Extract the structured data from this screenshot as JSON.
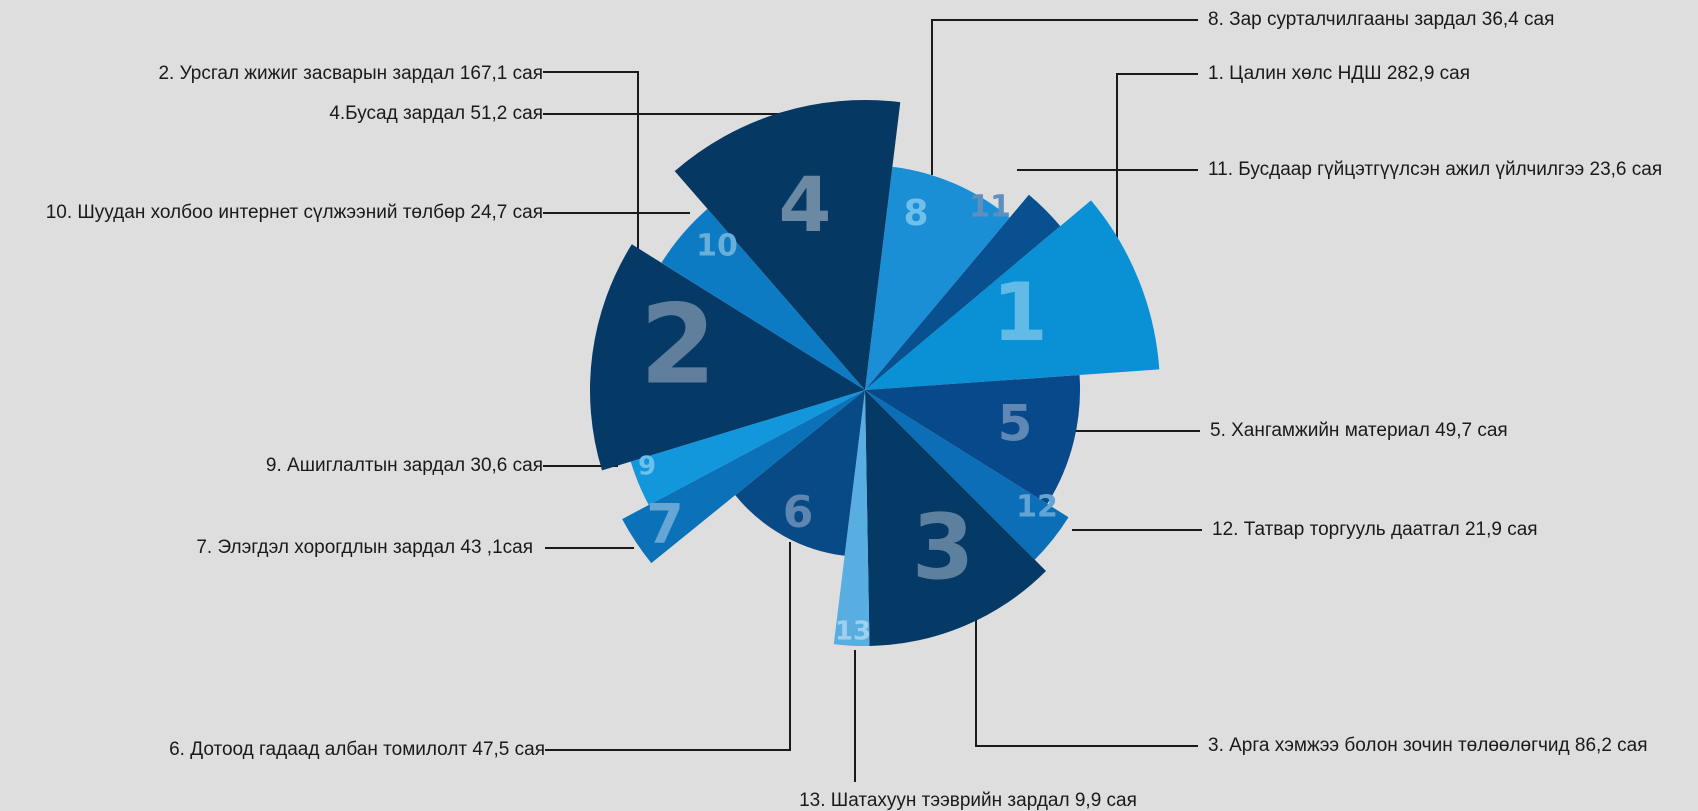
{
  "chart_data": {
    "type": "polar-area",
    "title": "",
    "unit": "сая",
    "series": [
      {
        "id": "8",
        "label": "8. Зар сурталчилгааны зардал 36,4 сая",
        "value": 36.4,
        "color": "#1a8fd6",
        "numColor": "#6fbfeb"
      },
      {
        "id": "11",
        "label": "11. Бусдаар гүйцэтгүүлсэн ажил үйлчилгээ 23,6 сая",
        "value": 23.6,
        "color": "#08508f",
        "numColor": "#5f8fbf"
      },
      {
        "id": "1",
        "label": "1. Цалин хөлс НДШ 282,9 сая",
        "value": 282.9,
        "color": "#0a90d4",
        "numColor": "#61bbe6"
      },
      {
        "id": "5",
        "label": "5. Хангамжийн материал 49,7 сая",
        "value": 49.7,
        "color": "#07498a",
        "numColor": "#5f88b4"
      },
      {
        "id": "12",
        "label": "12. Татвар торгууль даатгал 21,9 сая",
        "value": 21.9,
        "color": "#0b6eb6",
        "numColor": "#62a4d4"
      },
      {
        "id": "3",
        "label": "3. Арга хэмжээ болон зочин төлөөлөгчид 86,2 сая",
        "value": 86.2,
        "color": "#063a66",
        "numColor": "#5d809f"
      },
      {
        "id": "13",
        "label": "13. Шатахуун тээврийн зардал 9,9 сая",
        "value": 9.9,
        "color": "#58aee0",
        "numColor": "#9fd0ee"
      },
      {
        "id": "6",
        "label": "6. Дотоод гадаад албан томилолт 47,5 сая",
        "value": 47.5,
        "color": "#074a86",
        "numColor": "#5e86b0"
      },
      {
        "id": "7",
        "label": "7. Элэгдэл хорогдлын зардал 43 ,1сая",
        "value": 43.1,
        "color": "#0b72b9",
        "numColor": "#65a6d6"
      },
      {
        "id": "9",
        "label": "9. Ашиглалтын зардал 30,6 сая",
        "value": 30.6,
        "color": "#1297dc",
        "numColor": "#6cc0ec"
      },
      {
        "id": "2",
        "label": "2. Урсгал жижиг засварын зардал 167,1 сая",
        "value": 167.1,
        "color": "#063a66",
        "numColor": "#5f7f9c"
      },
      {
        "id": "10",
        "label": "10. Шуудан холбоо интернет сүлжээний төлбөр 24,7 сая",
        "value": 24.7,
        "color": "#0c7bc4",
        "numColor": "#67aed9"
      },
      {
        "id": "4",
        "label": "4.Бусад зардал 51,2 сая",
        "value": 51.2,
        "color": "#053862",
        "numColor": "#6b89a3"
      }
    ]
  },
  "colors": {
    "background": "#dedede",
    "leader_line": "#1a1a1a"
  }
}
